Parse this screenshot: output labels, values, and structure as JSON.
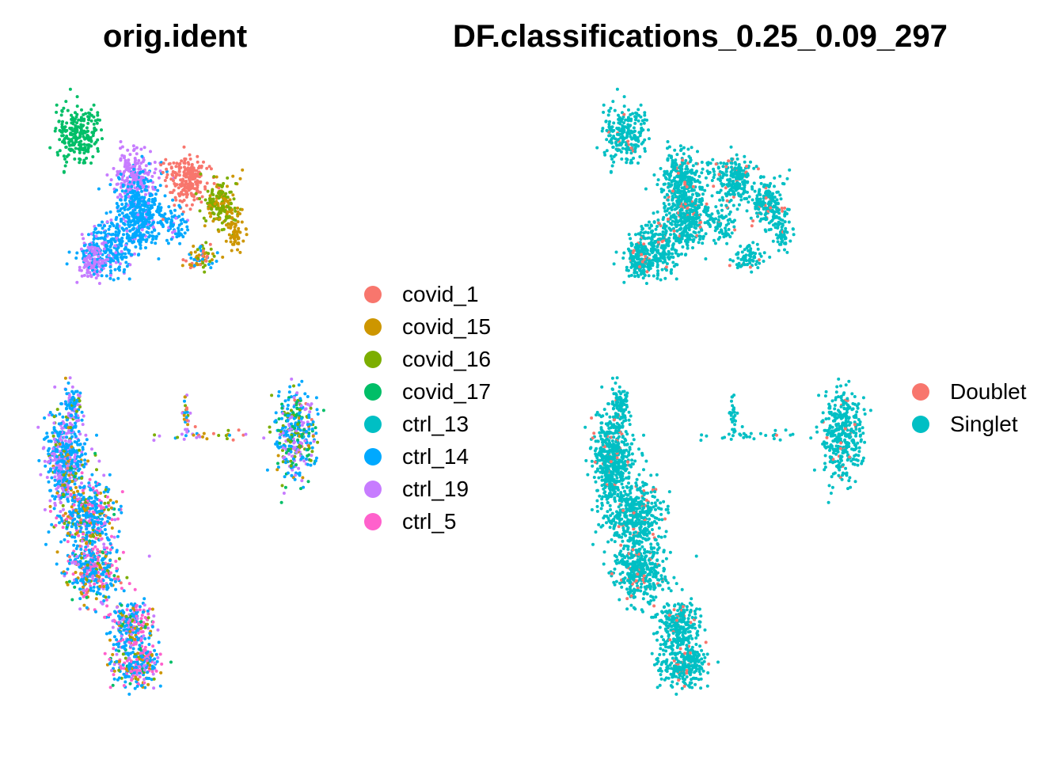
{
  "colors": {
    "covid_1": "#F8766D",
    "covid_15": "#CD9600",
    "covid_16": "#7CAE00",
    "covid_17": "#00BE67",
    "ctrl_13": "#00BFC4",
    "ctrl_14": "#00A9FF",
    "ctrl_19": "#C77CFF",
    "ctrl_5": "#FF61CC",
    "Doublet": "#F8766D",
    "Singlet": "#00BFC4"
  },
  "chart_data": [
    {
      "type": "scatter",
      "title": "orig.ident",
      "xlabel": "",
      "ylabel": "",
      "axes_shown": false,
      "grid": false,
      "legend_position": "right",
      "legend": [
        "covid_1",
        "covid_15",
        "covid_16",
        "covid_17",
        "ctrl_13",
        "ctrl_14",
        "ctrl_19",
        "ctrl_5"
      ],
      "series": [
        {
          "name": "covid_1",
          "color": "#F8766D"
        },
        {
          "name": "covid_15",
          "color": "#CD9600"
        },
        {
          "name": "covid_16",
          "color": "#7CAE00"
        },
        {
          "name": "covid_17",
          "color": "#00BE67"
        },
        {
          "name": "ctrl_13",
          "color": "#00BFC4"
        },
        {
          "name": "ctrl_14",
          "color": "#00A9FF"
        },
        {
          "name": "ctrl_19",
          "color": "#C77CFF"
        },
        {
          "name": "ctrl_5",
          "color": "#FF61CC"
        }
      ]
    },
    {
      "type": "scatter",
      "title": "DF.classifications_0.25_0.09_297",
      "xlabel": "",
      "ylabel": "",
      "axes_shown": false,
      "grid": false,
      "legend_position": "right",
      "legend": [
        "Doublet",
        "Singlet"
      ],
      "series": [
        {
          "name": "Doublet",
          "color": "#F8766D"
        },
        {
          "name": "Singlet",
          "color": "#00BFC4"
        }
      ]
    }
  ]
}
